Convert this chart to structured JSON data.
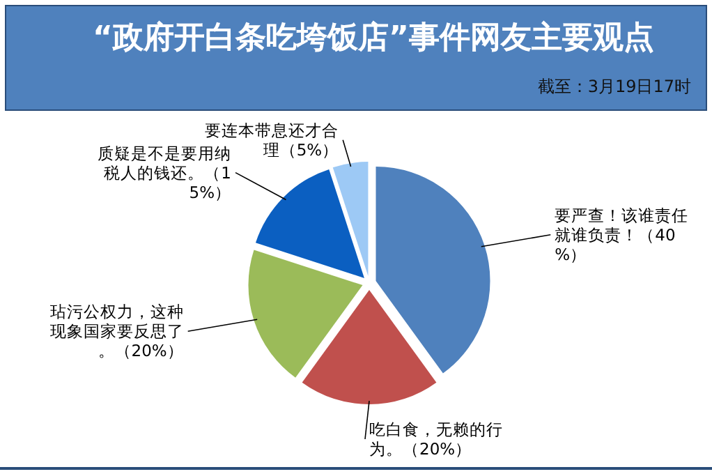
{
  "chart_data": {
    "type": "pie",
    "title": "“政府开白条吃垮饭店”事件网友主要观点",
    "annotations": [
      "截至：3月19日17时"
    ],
    "categories": [
      "要严查！该谁责任就谁负责！",
      "吃白食，无赖的行为。",
      "玷污公权力，这种现象国家要反思了。",
      "质疑是不是要用纳税人的钱还。",
      "要连本带息还才合理"
    ],
    "values": [
      40,
      20,
      20,
      15,
      5
    ],
    "value_labels": [
      "（40%）",
      "（20%）",
      "（20%）",
      "（15%）",
      "（5%）"
    ],
    "colors": [
      "#4f81bd",
      "#c0504d",
      "#9bbb59",
      "#0b5fc1",
      "#9dc9f5"
    ]
  }
}
